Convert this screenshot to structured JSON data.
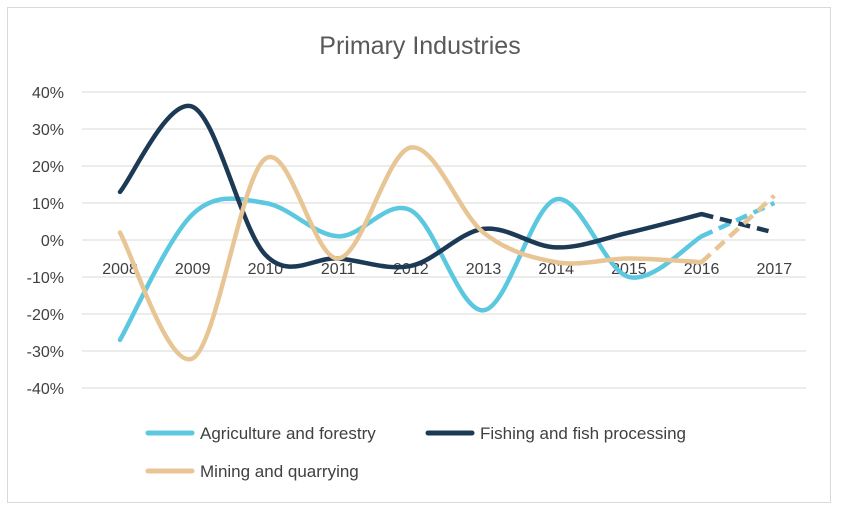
{
  "chart_data": {
    "type": "line",
    "title": "Primary Industries",
    "xlabel": "",
    "ylabel": "",
    "categories": [
      "2008",
      "2009",
      "2010",
      "2011",
      "2012",
      "2013",
      "2014",
      "2015",
      "2016",
      "2017"
    ],
    "y_ticks": [
      "40%",
      "30%",
      "20%",
      "10%",
      "0%",
      "-10%",
      "-20%",
      "-30%",
      "-40%"
    ],
    "ylim": [
      -40,
      40
    ],
    "grid": true,
    "legend_position": "bottom",
    "projected_segment": [
      "2016",
      "2017"
    ],
    "series": [
      {
        "name": "Agriculture and forestry",
        "color": "#5bc8e0",
        "values": [
          -27,
          7,
          10,
          1,
          8,
          -19,
          11,
          -10,
          1,
          10
        ]
      },
      {
        "name": "Fishing and fish processing",
        "color": "#1c3a55",
        "values": [
          13,
          36,
          -4,
          -5,
          -7,
          3,
          -2,
          2,
          7,
          2
        ]
      },
      {
        "name": "Mining and quarrying",
        "color": "#e8c594",
        "values": [
          2,
          -32,
          22,
          -5,
          25,
          2,
          -6,
          -5,
          -6,
          12
        ]
      }
    ]
  }
}
